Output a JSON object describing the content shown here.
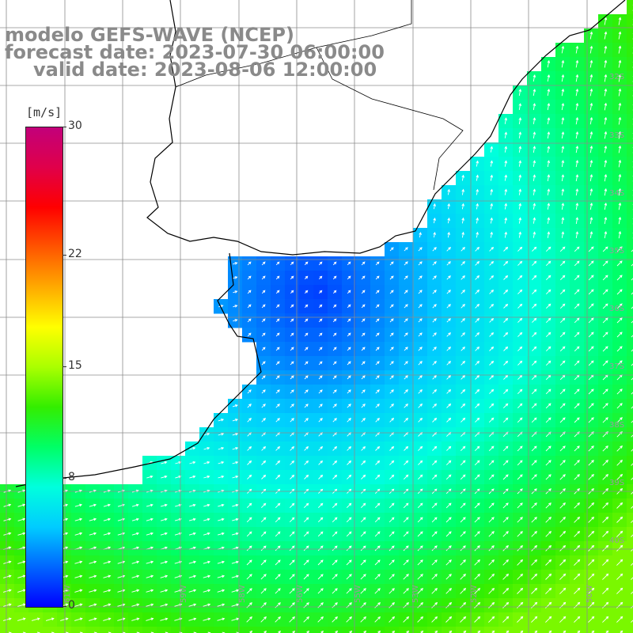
{
  "title": {
    "model": "modelo GEFS-WAVE (NCEP)",
    "forecast": "forecast date: 2023-07-30 06:00:00",
    "valid": "valid date: 2023-08-06 12:00:00"
  },
  "colorbar": {
    "unit": "[m/s]",
    "min": 0,
    "max": 30,
    "ticks": [
      {
        "value": 30,
        "label": "30"
      },
      {
        "value": 22,
        "label": "22"
      },
      {
        "value": 15,
        "label": "15"
      },
      {
        "value": 8,
        "label": "8"
      },
      {
        "value": 0,
        "label": "0"
      }
    ],
    "colors": [
      "#0000ff",
      "#0066ff",
      "#00ccff",
      "#00ffdd",
      "#00ff66",
      "#33ee00",
      "#aaff00",
      "#ffff00",
      "#ffaa00",
      "#ff5500",
      "#ff0000",
      "#e0004a",
      "#c2007a"
    ]
  },
  "map": {
    "variable": "wind speed",
    "lat_labels": [
      "32S",
      "33S",
      "34S",
      "35S",
      "36S",
      "37S",
      "38S",
      "39S",
      "40S"
    ],
    "lon_labels": [
      "61W",
      "59W",
      "58W",
      "56W",
      "55W",
      "53W",
      "52W",
      "50W"
    ],
    "colors": {
      "land": "#ffffff",
      "grid": "#8c8c8c",
      "coast": "#000000",
      "arrow": "#ffffff"
    }
  }
}
